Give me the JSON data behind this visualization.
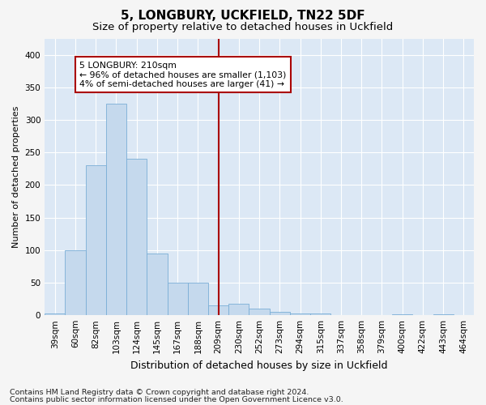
{
  "title1": "5, LONGBURY, UCKFIELD, TN22 5DF",
  "title2": "Size of property relative to detached houses in Uckfield",
  "xlabel": "Distribution of detached houses by size in Uckfield",
  "ylabel": "Number of detached properties",
  "categories": [
    "39sqm",
    "60sqm",
    "82sqm",
    "103sqm",
    "124sqm",
    "145sqm",
    "167sqm",
    "188sqm",
    "209sqm",
    "230sqm",
    "252sqm",
    "273sqm",
    "294sqm",
    "315sqm",
    "337sqm",
    "358sqm",
    "379sqm",
    "400sqm",
    "422sqm",
    "443sqm",
    "464sqm"
  ],
  "values": [
    3,
    100,
    230,
    325,
    240,
    95,
    50,
    50,
    15,
    18,
    10,
    5,
    3,
    3,
    0,
    0,
    0,
    1,
    0,
    1,
    0
  ],
  "bar_color": "#c5d9ed",
  "bar_edge_color": "#7aaed6",
  "vline_color": "#aa0000",
  "annotation_text": "5 LONGBURY: 210sqm\n← 96% of detached houses are smaller (1,103)\n4% of semi-detached houses are larger (41) →",
  "annotation_box_color": "#ffffff",
  "annotation_box_edge": "#aa0000",
  "ylim": [
    0,
    425
  ],
  "yticks": [
    0,
    50,
    100,
    150,
    200,
    250,
    300,
    350,
    400
  ],
  "footer1": "Contains HM Land Registry data © Crown copyright and database right 2024.",
  "footer2": "Contains public sector information licensed under the Open Government Licence v3.0.",
  "bg_color": "#f5f5f5",
  "plot_bg_color": "#dce8f5",
  "title1_fontsize": 11,
  "title2_fontsize": 9.5,
  "xlabel_fontsize": 9,
  "ylabel_fontsize": 8,
  "tick_fontsize": 7.5,
  "footer_fontsize": 6.8,
  "vline_index": 8
}
